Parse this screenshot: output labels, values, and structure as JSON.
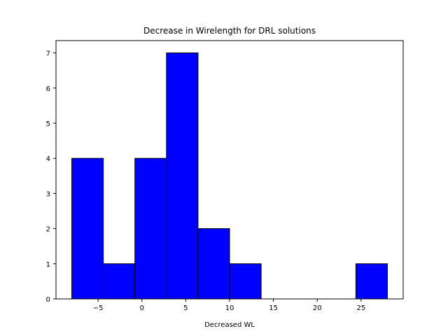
{
  "chart_data": {
    "type": "bar",
    "title": "Decrease in Wirelength for DRL solutions",
    "xlabel": "Decreased WL",
    "ylabel": "",
    "xlim": [
      -9.8,
      29.8
    ],
    "ylim": [
      0,
      7.35
    ],
    "xticks": [
      -5,
      0,
      5,
      10,
      15,
      20,
      25
    ],
    "xtick_labels": [
      "−5",
      "0",
      "5",
      "10",
      "15",
      "20",
      "25"
    ],
    "yticks": [
      0,
      1,
      2,
      3,
      4,
      5,
      6,
      7
    ],
    "ytick_labels": [
      "0",
      "1",
      "2",
      "3",
      "4",
      "5",
      "6",
      "7"
    ],
    "bins": [
      {
        "x0": -8.0,
        "x1": -4.4,
        "count": 4
      },
      {
        "x0": -4.4,
        "x1": -0.8,
        "count": 1
      },
      {
        "x0": -0.8,
        "x1": 2.8,
        "count": 4
      },
      {
        "x0": 2.8,
        "x1": 6.4,
        "count": 7
      },
      {
        "x0": 6.4,
        "x1": 10.0,
        "count": 2
      },
      {
        "x0": 10.0,
        "x1": 13.6,
        "count": 1
      },
      {
        "x0": 13.6,
        "x1": 17.2,
        "count": 0
      },
      {
        "x0": 17.2,
        "x1": 20.8,
        "count": 0
      },
      {
        "x0": 20.8,
        "x1": 24.4,
        "count": 0
      },
      {
        "x0": 24.4,
        "x1": 28.0,
        "count": 1
      }
    ],
    "bar_color": "#0000ff",
    "edge_color": "#000000",
    "grid": false,
    "legend": "none"
  }
}
